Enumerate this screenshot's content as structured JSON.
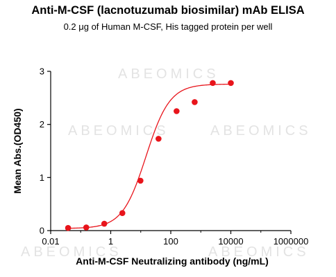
{
  "chart_data": {
    "type": "scatter",
    "title": "Anti-M-CSF (lacnotuzumab biosimilar) mAb ELISA",
    "subtitle": "0.2 μg of Human M-CSF, His tagged protein per well",
    "xlabel": "Anti-M-CSF Neutralizing antibody (ng/mL)",
    "ylabel": "Mean Abs.(OD450)",
    "x_scale": "log",
    "xlim": [
      0.01,
      1000000
    ],
    "ylim": [
      0,
      3
    ],
    "x_ticks": [
      0.01,
      1,
      100,
      10000,
      1000000
    ],
    "x_tick_labels": [
      "0.01",
      "1",
      "100",
      "10000",
      "1000000"
    ],
    "y_ticks": [
      0,
      1,
      2,
      3
    ],
    "y_tick_labels": [
      "0",
      "1",
      "2",
      "3"
    ],
    "grid": false,
    "legend": "none",
    "series": [
      {
        "x": [
          0.038,
          0.153,
          0.61,
          2.44,
          9.77,
          39.1,
          156,
          625,
          2500,
          10000
        ],
        "y": [
          0.05,
          0.06,
          0.13,
          0.33,
          0.94,
          1.73,
          2.25,
          2.42,
          2.78,
          2.78
        ],
        "color": "#e8141b",
        "marker": "circle"
      }
    ],
    "fit_curve": {
      "model": "4PL",
      "bottom": 0.04,
      "top": 2.76,
      "ec50": 15.0,
      "hill": 1.1,
      "color": "#e8141b"
    },
    "watermark": "ABEOMICS"
  }
}
